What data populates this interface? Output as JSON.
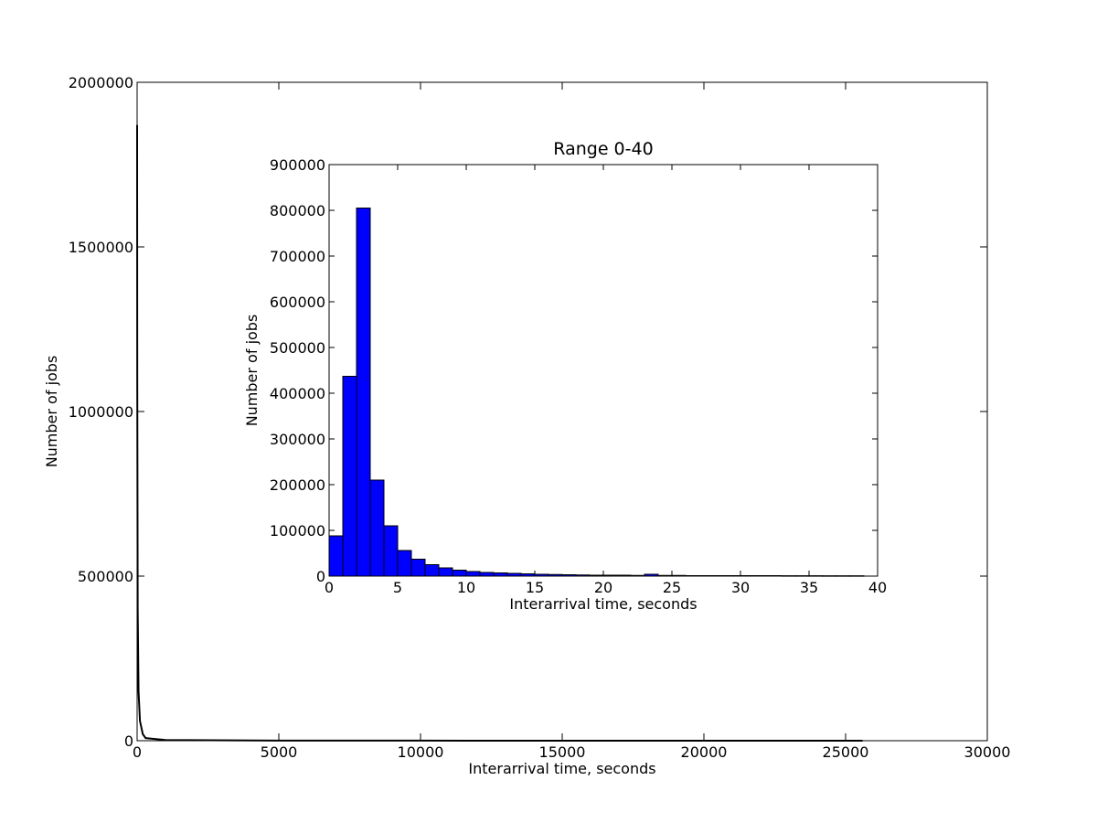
{
  "chart_data": [
    {
      "type": "line",
      "title": "",
      "xlabel": "Interarrival time, seconds",
      "ylabel": "Number of jobs",
      "xlim": [
        0,
        30000
      ],
      "ylim": [
        0,
        2000000
      ],
      "xticks": [
        "0",
        "5000",
        "10000",
        "15000",
        "20000",
        "25000",
        "30000"
      ],
      "yticks": [
        "0",
        "500000",
        "1000000",
        "1500000",
        "2000000"
      ],
      "grid": false,
      "series": [
        {
          "color": "#000000",
          "x": [
            0,
            5,
            20,
            50,
            100,
            200,
            300,
            1000,
            5000,
            10000,
            15000,
            20000,
            25600
          ],
          "y": [
            1870000,
            1100000,
            400000,
            150000,
            60000,
            20000,
            8000,
            2000,
            500,
            200,
            100,
            50,
            20
          ]
        }
      ]
    },
    {
      "type": "bar",
      "title": "Range 0-40",
      "xlabel": "Interarrival time, seconds",
      "ylabel": "Number of jobs",
      "xlim": [
        0,
        40
      ],
      "ylim": [
        0,
        900000
      ],
      "xticks": [
        "0",
        "5",
        "10",
        "15",
        "20",
        "25",
        "30",
        "35",
        "40"
      ],
      "yticks": [
        "0",
        "100000",
        "200000",
        "300000",
        "400000",
        "500000",
        "600000",
        "700000",
        "800000",
        "900000"
      ],
      "grid": false,
      "bar_color": "#0000ff",
      "bin_edges": [
        0,
        1,
        2,
        3,
        4,
        5,
        6,
        7,
        8,
        9,
        10,
        11,
        12,
        13,
        14,
        15,
        16,
        17,
        18,
        19,
        20,
        21,
        22,
        23,
        24,
        25,
        26,
        27,
        28,
        29,
        30,
        31,
        32,
        33,
        34,
        35,
        36,
        37,
        38,
        39
      ],
      "values": [
        88000,
        437000,
        805000,
        210000,
        110000,
        56000,
        37000,
        25000,
        18000,
        13000,
        10000,
        8000,
        7000,
        6000,
        5000,
        4000,
        3500,
        3000,
        2500,
        2000,
        2000,
        2000,
        1500,
        4000,
        1500,
        1500,
        1000,
        1000,
        1000,
        1000,
        1000,
        1000,
        1000,
        800,
        800,
        800,
        700,
        700,
        700
      ]
    }
  ]
}
